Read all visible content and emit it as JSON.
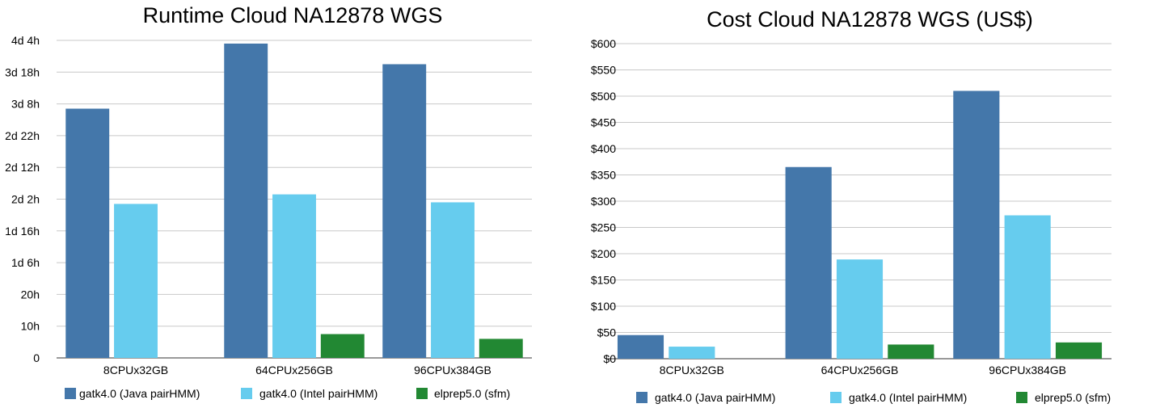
{
  "chart_data": [
    {
      "type": "bar",
      "title": "Runtime Cloud NA12878 WGS",
      "categories": [
        "8CPUx32GB",
        "64CPUx256GB",
        "96CPUx384GB"
      ],
      "y_unit": "hours",
      "ylim": [
        0,
        100
      ],
      "y_ticks": [
        0,
        10,
        20,
        30,
        40,
        50,
        60,
        70,
        80,
        90,
        100
      ],
      "y_tick_labels": [
        "0",
        "10h",
        "20h",
        "1d 6h",
        "1d 16h",
        "2d 2h",
        "2d 12h",
        "2d 22h",
        "3d 8h",
        "3d 18h",
        "4d 4h"
      ],
      "series": [
        {
          "name": "gatk4.0 (Java pairHMM)",
          "color": "#4477aa",
          "values": [
            78.5,
            99,
            92.5
          ]
        },
        {
          "name": "gatk4.0 (Intel pairHMM)",
          "color": "#66ccee",
          "values": [
            48.5,
            51.5,
            49
          ]
        },
        {
          "name": "elprep5.0 (sfm)",
          "color": "#228833",
          "values": [
            0,
            7.5,
            6
          ]
        }
      ],
      "grid": true,
      "legend": "bottom"
    },
    {
      "type": "bar",
      "title": "Cost Cloud NA12878 WGS (US$)",
      "categories": [
        "8CPUx32GB",
        "64CPUx256GB",
        "96CPUx384GB"
      ],
      "ylim": [
        0,
        600
      ],
      "y_ticks": [
        0,
        50,
        100,
        150,
        200,
        250,
        300,
        350,
        400,
        450,
        500,
        550,
        600
      ],
      "y_tick_labels": [
        "$0",
        "$50",
        "$100",
        "$150",
        "$200",
        "$250",
        "$300",
        "$350",
        "$400",
        "$450",
        "$500",
        "$550",
        "$600"
      ],
      "series": [
        {
          "name": "gatk4.0 (Java pairHMM)",
          "color": "#4477aa",
          "values": [
            45,
            365,
            510
          ]
        },
        {
          "name": "gatk4.0 (Intel pairHMM)",
          "color": "#66ccee",
          "values": [
            23,
            189,
            273
          ]
        },
        {
          "name": "elprep5.0 (sfm)",
          "color": "#228833",
          "values": [
            0,
            27,
            31
          ]
        }
      ],
      "grid": true,
      "legend": "bottom"
    }
  ]
}
